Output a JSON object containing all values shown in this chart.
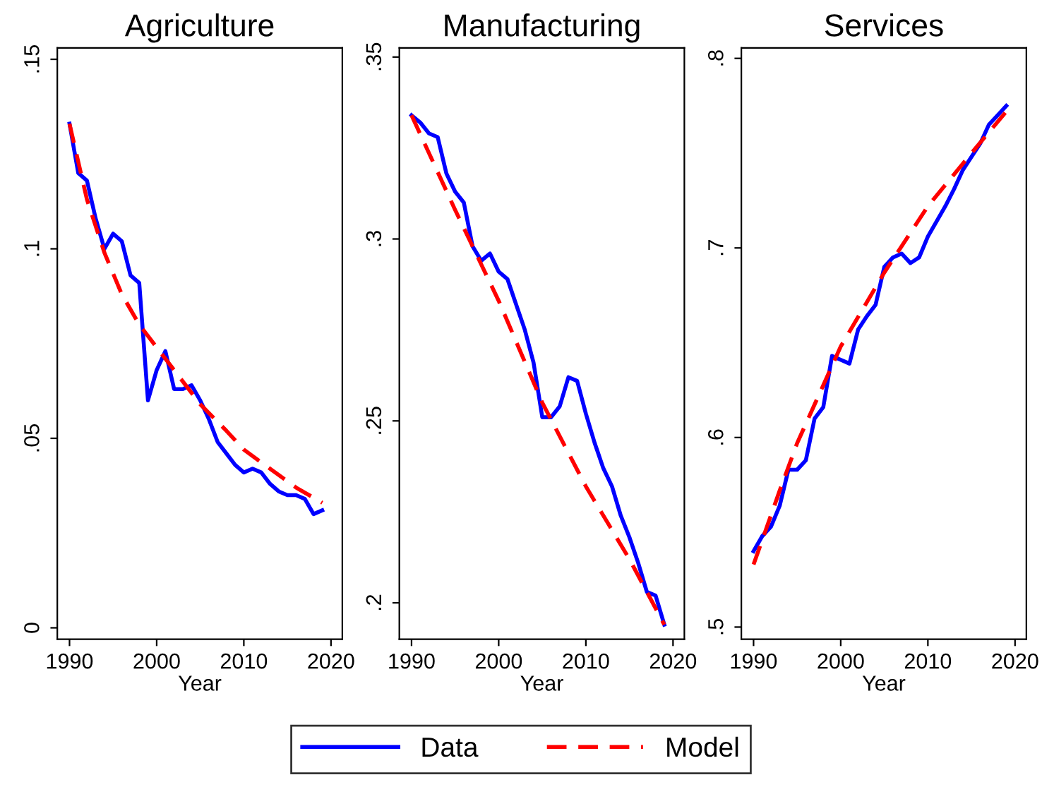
{
  "chart_data": [
    {
      "type": "line",
      "title": "Agriculture",
      "xlabel": "Year",
      "xlim": [
        1988.6,
        2021.3
      ],
      "xticks": [
        1990,
        2000,
        2010,
        2020
      ],
      "ylim": [
        -0.003,
        0.153
      ],
      "yticks": [
        {
          "value": 0,
          "label": "0"
        },
        {
          "value": 0.05,
          "label": ".05"
        },
        {
          "value": 0.1,
          "label": ".1"
        },
        {
          "value": 0.15,
          "label": ".15"
        }
      ],
      "grid": false,
      "legend": "bottom",
      "series": [
        {
          "name": "Data",
          "color": "#0000ff",
          "line_style": "solid",
          "x": [
            1990,
            1991,
            1992,
            1993,
            1994,
            1995,
            1996,
            1997,
            1998,
            1999,
            2000,
            2001,
            2002,
            2003,
            2004,
            2005,
            2006,
            2007,
            2008,
            2009,
            2010,
            2011,
            2012,
            2013,
            2014,
            2015,
            2016,
            2017,
            2018,
            2019
          ],
          "values": [
            0.133,
            0.12,
            0.118,
            0.108,
            0.1,
            0.104,
            0.102,
            0.093,
            0.091,
            0.06,
            0.068,
            0.073,
            0.063,
            0.063,
            0.064,
            0.06,
            0.055,
            0.049,
            0.046,
            0.043,
            0.041,
            0.042,
            0.041,
            0.038,
            0.036,
            0.035,
            0.035,
            0.034,
            0.03,
            0.031
          ]
        },
        {
          "name": "Model",
          "color": "#ff0000",
          "line_style": "dashed",
          "x": [
            1990,
            1992,
            1994,
            1996,
            1998,
            2000,
            2002,
            2005,
            2008,
            2010,
            2013,
            2016,
            2019
          ],
          "values": [
            0.133,
            0.113,
            0.099,
            0.088,
            0.08,
            0.074,
            0.068,
            0.059,
            0.052,
            0.047,
            0.042,
            0.037,
            0.033
          ]
        }
      ]
    },
    {
      "type": "line",
      "title": "Manufacturing",
      "xlabel": "Year",
      "xlim": [
        1988.6,
        2021.3
      ],
      "xticks": [
        1990,
        2000,
        2010,
        2020
      ],
      "ylim": [
        0.19,
        0.3525
      ],
      "yticks": [
        {
          "value": 0.2,
          "label": ".2"
        },
        {
          "value": 0.25,
          "label": ".25"
        },
        {
          "value": 0.3,
          "label": ".3"
        },
        {
          "value": 0.35,
          "label": ".35"
        }
      ],
      "grid": false,
      "series": [
        {
          "name": "Data",
          "color": "#0000ff",
          "line_style": "solid",
          "x": [
            1990,
            1991,
            1992,
            1993,
            1994,
            1995,
            1996,
            1997,
            1998,
            1999,
            2000,
            2001,
            2002,
            2003,
            2004,
            2005,
            2006,
            2007,
            2008,
            2009,
            2010,
            2011,
            2012,
            2013,
            2014,
            2015,
            2016,
            2017,
            2018,
            2019
          ],
          "values": [
            0.334,
            0.332,
            0.329,
            0.328,
            0.318,
            0.313,
            0.31,
            0.298,
            0.294,
            0.296,
            0.291,
            0.289,
            0.282,
            0.275,
            0.266,
            0.251,
            0.251,
            0.254,
            0.262,
            0.261,
            0.252,
            0.244,
            0.237,
            0.232,
            0.224,
            0.218,
            0.211,
            0.203,
            0.202,
            0.194
          ]
        },
        {
          "name": "Model",
          "color": "#ff0000",
          "line_style": "dashed",
          "x": [
            1990,
            1995,
            2000,
            2005,
            2010,
            2015,
            2019
          ],
          "values": [
            0.334,
            0.308,
            0.283,
            0.255,
            0.232,
            0.212,
            0.194
          ]
        }
      ]
    },
    {
      "type": "line",
      "title": "Services",
      "xlabel": "Year",
      "xlim": [
        1988.6,
        2021.3
      ],
      "xticks": [
        1990,
        2000,
        2010,
        2020
      ],
      "ylim": [
        0.4936,
        0.8055
      ],
      "yticks": [
        {
          "value": 0.5,
          "label": ".5"
        },
        {
          "value": 0.6,
          "label": ".6"
        },
        {
          "value": 0.7,
          "label": ".7"
        },
        {
          "value": 0.8,
          "label": ".8"
        }
      ],
      "grid": false,
      "series": [
        {
          "name": "Data",
          "color": "#0000ff",
          "line_style": "solid",
          "x": [
            1990,
            1991,
            1992,
            1993,
            1994,
            1995,
            1996,
            1997,
            1998,
            1999,
            2000,
            2001,
            2002,
            2003,
            2004,
            2005,
            2006,
            2007,
            2008,
            2009,
            2010,
            2011,
            2012,
            2013,
            2014,
            2015,
            2016,
            2017,
            2018,
            2019
          ],
          "values": [
            0.54,
            0.548,
            0.553,
            0.564,
            0.583,
            0.583,
            0.588,
            0.61,
            0.616,
            0.643,
            0.641,
            0.639,
            0.657,
            0.664,
            0.67,
            0.69,
            0.695,
            0.697,
            0.692,
            0.695,
            0.706,
            0.714,
            0.722,
            0.731,
            0.741,
            0.748,
            0.755,
            0.765,
            0.77,
            0.775
          ]
        },
        {
          "name": "Model",
          "color": "#ff0000",
          "line_style": "dashed",
          "x": [
            1990,
            1993,
            1995,
            2000,
            2005,
            2010,
            2015,
            2019
          ],
          "values": [
            0.533,
            0.572,
            0.597,
            0.648,
            0.687,
            0.722,
            0.75,
            0.772
          ]
        }
      ]
    }
  ]
}
